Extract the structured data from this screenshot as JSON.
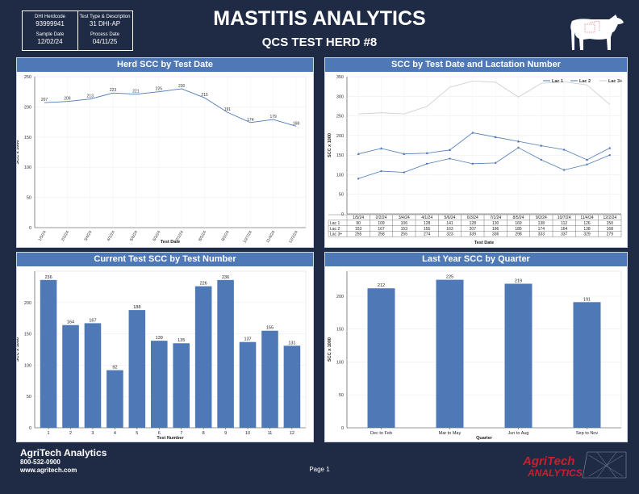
{
  "header": {
    "dhi_herdcode_label": "DHI Herdcode",
    "dhi_herdcode": "93999941",
    "test_type_label": "Test Type & Description",
    "test_type": "31 DHI-AP",
    "sample_date_label": "Sample Date",
    "sample_date": "12/02/24",
    "process_date_label": "Process Date",
    "process_date": "04/11/25",
    "title": "MASTITIS ANALYTICS",
    "subtitle": "QCS TEST HERD #8"
  },
  "footer": {
    "company": "AgriTech Analytics",
    "phone": "800-532-0900",
    "website": "www.agritech.com",
    "page": "Page 1",
    "logo_top": "AgriTech",
    "logo_bottom": "ANALYTICS"
  },
  "colors": {
    "navy": "#1f2a44",
    "panel_header": "#4e79b6",
    "bar": "#4e79b6",
    "line": "#4e79b6",
    "lac3_line": "#c8cbd3",
    "logo_red": "#c8202f"
  },
  "chart_data": [
    {
      "type": "line",
      "title": "Herd SCC by Test Date",
      "xlabel": "Test Date",
      "ylabel": "SCC x 1000",
      "x": [
        "1/5/24",
        "2/2/24",
        "3/4/24",
        "4/1/24",
        "5/6/24",
        "6/3/24",
        "7/1/24",
        "8/5/24",
        "9/2/24",
        "10/7/24",
        "11/4/24",
        "12/2/24"
      ],
      "values": [
        207,
        209,
        213,
        223,
        221,
        225,
        230,
        215,
        191,
        174,
        179,
        168
      ],
      "ylim": [
        0,
        250
      ],
      "yticks": [
        0,
        50,
        100,
        150,
        200,
        250
      ],
      "grid": true
    },
    {
      "type": "line",
      "title": "SCC by Test Date and Lactation Number",
      "xlabel": "Test Date",
      "ylabel": "SCC x 1000",
      "x": [
        "1/5/24",
        "2/2/24",
        "3/4/24",
        "4/1/24",
        "5/6/24",
        "6/3/24",
        "7/1/24",
        "8/5/24",
        "9/2/24",
        "10/7/24",
        "11/4/24",
        "12/2/24"
      ],
      "series": [
        {
          "name": "Lac 1",
          "values": [
            90,
            109,
            106,
            128,
            141,
            128,
            130,
            169,
            138,
            112,
            126,
            150
          ]
        },
        {
          "name": "Lac 2",
          "values": [
            153,
            167,
            153,
            155,
            163,
            207,
            196,
            185,
            174,
            164,
            138,
            168
          ]
        },
        {
          "name": "Lac 3+",
          "values": [
            255,
            258,
            255,
            274,
            323,
            339,
            336,
            298,
            333,
            337,
            329,
            279
          ]
        }
      ],
      "ylim": [
        0,
        350
      ],
      "yticks": [
        0,
        50,
        100,
        150,
        200,
        250,
        300,
        350
      ],
      "legend": "top-right",
      "grid": true
    },
    {
      "type": "bar",
      "title": "Current Test SCC by Test Number",
      "xlabel": "Test Number",
      "ylabel": "SCC x 1000",
      "categories": [
        "1",
        "2",
        "3",
        "4",
        "5",
        "6",
        "7",
        "8",
        "9",
        "10",
        "11",
        "12"
      ],
      "values": [
        236,
        164,
        167,
        92,
        188,
        139,
        135,
        226,
        236,
        137,
        155,
        131
      ],
      "ylim": [
        0,
        250
      ],
      "yticks": [
        0,
        50,
        100,
        150,
        200
      ],
      "grid": true
    },
    {
      "type": "bar",
      "title": "Last Year SCC by Quarter",
      "xlabel": "Quarter",
      "ylabel": "SCC x 1000",
      "categories": [
        "Dec to Feb",
        "Mar to May",
        "Jun to Aug",
        "Sep to Nov"
      ],
      "values": [
        212,
        225,
        219,
        191
      ],
      "ylim": [
        0,
        238
      ],
      "yticks": [
        0,
        50,
        100,
        150,
        200
      ],
      "grid": true
    }
  ]
}
